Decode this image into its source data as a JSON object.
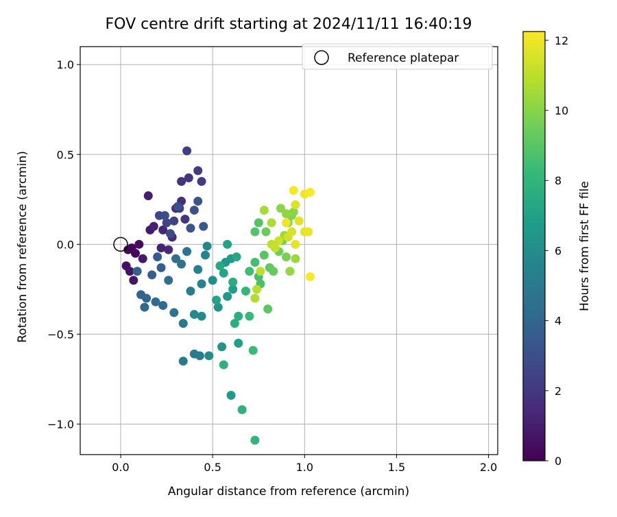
{
  "chart_data": {
    "type": "scatter",
    "title": "FOV centre drift starting at 2024/11/11 16:40:19",
    "xlabel": "Angular distance from reference (arcmin)",
    "ylabel": "Rotation from reference (arcmin)",
    "xlim": [
      -0.22,
      2.05
    ],
    "ylim": [
      -1.17,
      1.1
    ],
    "xticks": [
      0.0,
      0.5,
      1.0,
      1.5,
      2.0
    ],
    "xtick_labels": [
      "0.0",
      "0.5",
      "1.0",
      "1.5",
      "2.0"
    ],
    "yticks": [
      -1.0,
      -0.5,
      0.0,
      0.5,
      1.0
    ],
    "ytick_labels": [
      "−1.0",
      "−0.5",
      "0.0",
      "0.5",
      "1.0"
    ],
    "grid": true,
    "legend": {
      "placement": "top-right",
      "entries": [
        "Reference platepar"
      ]
    },
    "reference_point": {
      "x": 0.0,
      "y": 0.0,
      "marker": "open-circle"
    },
    "colorbar": {
      "label": "Hours from first FF file",
      "range": [
        0,
        12.25
      ],
      "ticks": [
        0,
        2,
        4,
        6,
        8,
        10,
        12
      ],
      "tick_labels": [
        "0",
        "2",
        "4",
        "6",
        "8",
        "10",
        "12"
      ],
      "colormap": [
        "#440154",
        "#482878",
        "#3e4989",
        "#31688e",
        "#26828e",
        "#1f9e89",
        "#35b779",
        "#6ece58",
        "#b5de2b",
        "#fde725"
      ]
    },
    "series": [
      {
        "points": [
          {
            "x": 0.04,
            "y": -0.03,
            "h": 0.1
          },
          {
            "x": 0.06,
            "y": -0.02,
            "h": 0.2
          },
          {
            "x": 0.08,
            "y": -0.05,
            "h": 0.3
          },
          {
            "x": 0.1,
            "y": 0.0,
            "h": 0.4
          },
          {
            "x": 0.03,
            "y": -0.12,
            "h": 0.5
          },
          {
            "x": 0.05,
            "y": -0.15,
            "h": 0.6
          },
          {
            "x": 0.07,
            "y": -0.2,
            "h": 0.7
          },
          {
            "x": 0.12,
            "y": -0.08,
            "h": 0.8
          },
          {
            "x": 0.16,
            "y": 0.08,
            "h": 0.9
          },
          {
            "x": 0.15,
            "y": 0.27,
            "h": 1.0
          },
          {
            "x": 0.18,
            "y": 0.1,
            "h": 1.1
          },
          {
            "x": 0.22,
            "y": -0.02,
            "h": 1.2
          },
          {
            "x": 0.23,
            "y": 0.08,
            "h": 1.3
          },
          {
            "x": 0.26,
            "y": -0.03,
            "h": 1.4
          },
          {
            "x": 0.28,
            "y": 0.04,
            "h": 1.5
          },
          {
            "x": 0.3,
            "y": 0.2,
            "h": 1.6
          },
          {
            "x": 0.33,
            "y": 0.24,
            "h": 1.7
          },
          {
            "x": 0.33,
            "y": 0.35,
            "h": 1.8
          },
          {
            "x": 0.37,
            "y": 0.37,
            "h": 1.9
          },
          {
            "x": 0.35,
            "y": 0.14,
            "h": 2.0
          },
          {
            "x": 0.42,
            "y": 0.41,
            "h": 2.1
          },
          {
            "x": 0.44,
            "y": 0.35,
            "h": 2.2
          },
          {
            "x": 0.36,
            "y": 0.52,
            "h": 2.3
          },
          {
            "x": 0.32,
            "y": 0.2,
            "h": 2.4
          },
          {
            "x": 0.29,
            "y": 0.13,
            "h": 2.5
          },
          {
            "x": 0.25,
            "y": 0.12,
            "h": 2.6
          },
          {
            "x": 0.21,
            "y": 0.16,
            "h": 2.7
          },
          {
            "x": 0.27,
            "y": 0.06,
            "h": 2.8
          },
          {
            "x": 0.24,
            "y": 0.16,
            "h": 2.9
          },
          {
            "x": 0.31,
            "y": 0.21,
            "h": 3.0
          },
          {
            "x": 0.4,
            "y": 0.19,
            "h": 3.1
          },
          {
            "x": 0.42,
            "y": 0.24,
            "h": 3.2
          },
          {
            "x": 0.38,
            "y": 0.09,
            "h": 3.3
          },
          {
            "x": 0.45,
            "y": 0.1,
            "h": 3.4
          },
          {
            "x": 0.2,
            "y": -0.07,
            "h": 3.5
          },
          {
            "x": 0.22,
            "y": -0.13,
            "h": 3.6
          },
          {
            "x": 0.17,
            "y": -0.17,
            "h": 3.7
          },
          {
            "x": 0.09,
            "y": -0.15,
            "h": 3.8
          },
          {
            "x": 0.11,
            "y": -0.28,
            "h": 3.9
          },
          {
            "x": 0.14,
            "y": -0.3,
            "h": 4.0
          },
          {
            "x": 0.13,
            "y": -0.35,
            "h": 4.1
          },
          {
            "x": 0.23,
            "y": -0.34,
            "h": 4.2
          },
          {
            "x": 0.19,
            "y": -0.32,
            "h": 4.3
          },
          {
            "x": 0.26,
            "y": -0.2,
            "h": 4.4
          },
          {
            "x": 0.3,
            "y": -0.08,
            "h": 4.5
          },
          {
            "x": 0.33,
            "y": -0.11,
            "h": 4.6
          },
          {
            "x": 0.36,
            "y": -0.04,
            "h": 4.7
          },
          {
            "x": 0.29,
            "y": -0.38,
            "h": 4.8
          },
          {
            "x": 0.34,
            "y": -0.44,
            "h": 4.9
          },
          {
            "x": 0.34,
            "y": -0.65,
            "h": 5.0
          },
          {
            "x": 0.4,
            "y": -0.61,
            "h": 5.1
          },
          {
            "x": 0.43,
            "y": -0.62,
            "h": 5.2
          },
          {
            "x": 0.38,
            "y": -0.26,
            "h": 5.3
          },
          {
            "x": 0.42,
            "y": -0.14,
            "h": 5.4
          },
          {
            "x": 0.44,
            "y": -0.22,
            "h": 5.5
          },
          {
            "x": 0.46,
            "y": -0.06,
            "h": 5.6
          },
          {
            "x": 0.47,
            "y": -0.01,
            "h": 5.7
          },
          {
            "x": 0.4,
            "y": -0.39,
            "h": 5.8
          },
          {
            "x": 0.44,
            "y": -0.4,
            "h": 5.9
          },
          {
            "x": 0.48,
            "y": -0.62,
            "h": 6.0
          },
          {
            "x": 0.5,
            "y": -0.2,
            "h": 6.1
          },
          {
            "x": 0.53,
            "y": -0.35,
            "h": 6.2
          },
          {
            "x": 0.55,
            "y": -0.57,
            "h": 6.3
          },
          {
            "x": 0.57,
            "y": -0.1,
            "h": 6.4
          },
          {
            "x": 0.58,
            "y": -0.29,
            "h": 6.5
          },
          {
            "x": 0.6,
            "y": -0.84,
            "h": 6.6
          },
          {
            "x": 0.6,
            "y": -0.08,
            "h": 6.7
          },
          {
            "x": 0.61,
            "y": -0.25,
            "h": 6.8
          },
          {
            "x": 0.64,
            "y": -0.55,
            "h": 6.9
          },
          {
            "x": 0.58,
            "y": 0.0,
            "h": 7.0
          },
          {
            "x": 0.52,
            "y": -0.31,
            "h": 7.1
          },
          {
            "x": 0.56,
            "y": -0.16,
            "h": 7.2
          },
          {
            "x": 0.63,
            "y": -0.07,
            "h": 7.3
          },
          {
            "x": 0.54,
            "y": -0.12,
            "h": 7.4
          },
          {
            "x": 0.61,
            "y": -0.21,
            "h": 7.5
          },
          {
            "x": 0.62,
            "y": -0.44,
            "h": 7.6
          },
          {
            "x": 0.64,
            "y": -0.4,
            "h": 7.7
          },
          {
            "x": 0.56,
            "y": -0.67,
            "h": 7.8
          },
          {
            "x": 0.66,
            "y": -0.92,
            "h": 7.9
          },
          {
            "x": 0.73,
            "y": -1.09,
            "h": 8.0
          },
          {
            "x": 0.68,
            "y": -0.26,
            "h": 8.1
          },
          {
            "x": 0.7,
            "y": -0.4,
            "h": 8.2
          },
          {
            "x": 0.72,
            "y": -0.59,
            "h": 8.3
          },
          {
            "x": 0.7,
            "y": -0.15,
            "h": 8.4
          },
          {
            "x": 0.73,
            "y": -0.1,
            "h": 8.5
          },
          {
            "x": 0.75,
            "y": -0.18,
            "h": 8.6
          },
          {
            "x": 0.76,
            "y": -0.22,
            "h": 8.7
          },
          {
            "x": 0.73,
            "y": 0.07,
            "h": 8.8
          },
          {
            "x": 0.75,
            "y": 0.12,
            "h": 8.9
          },
          {
            "x": 0.78,
            "y": -0.06,
            "h": 9.0
          },
          {
            "x": 0.8,
            "y": -0.36,
            "h": 9.1
          },
          {
            "x": 0.81,
            "y": -0.13,
            "h": 9.2
          },
          {
            "x": 0.83,
            "y": -0.15,
            "h": 9.3
          },
          {
            "x": 0.79,
            "y": 0.07,
            "h": 9.4
          },
          {
            "x": 0.86,
            "y": -0.04,
            "h": 9.5
          },
          {
            "x": 0.88,
            "y": 0.02,
            "h": 9.6
          },
          {
            "x": 0.9,
            "y": -0.07,
            "h": 9.7
          },
          {
            "x": 0.91,
            "y": 0.12,
            "h": 9.8
          },
          {
            "x": 0.93,
            "y": 0.16,
            "h": 9.9
          },
          {
            "x": 0.94,
            "y": 0.18,
            "h": 10.0
          },
          {
            "x": 0.87,
            "y": 0.2,
            "h": 10.1
          },
          {
            "x": 0.9,
            "y": 0.17,
            "h": 10.2
          },
          {
            "x": 0.92,
            "y": -0.15,
            "h": 10.3
          },
          {
            "x": 0.95,
            "y": -0.08,
            "h": 10.4
          },
          {
            "x": 0.89,
            "y": 0.05,
            "h": 10.5
          },
          {
            "x": 0.78,
            "y": 0.19,
            "h": 10.6
          },
          {
            "x": 0.82,
            "y": 0.12,
            "h": 10.7
          },
          {
            "x": 0.73,
            "y": -0.3,
            "h": 10.8
          },
          {
            "x": 0.74,
            "y": -0.25,
            "h": 10.9
          },
          {
            "x": 0.76,
            "y": -0.15,
            "h": 11.0
          },
          {
            "x": 0.82,
            "y": 0.0,
            "h": 11.1
          },
          {
            "x": 0.84,
            "y": -0.02,
            "h": 11.2
          },
          {
            "x": 0.86,
            "y": 0.02,
            "h": 11.3
          },
          {
            "x": 0.91,
            "y": 0.04,
            "h": 11.4
          },
          {
            "x": 0.93,
            "y": 0.07,
            "h": 11.5
          },
          {
            "x": 0.95,
            "y": 0.22,
            "h": 11.6
          },
          {
            "x": 0.97,
            "y": 0.13,
            "h": 11.7
          },
          {
            "x": 1.0,
            "y": 0.07,
            "h": 11.8
          },
          {
            "x": 1.02,
            "y": 0.07,
            "h": 11.9
          },
          {
            "x": 1.0,
            "y": 0.28,
            "h": 12.0
          },
          {
            "x": 0.94,
            "y": 0.3,
            "h": 12.1
          },
          {
            "x": 1.03,
            "y": 0.29,
            "h": 12.2
          },
          {
            "x": 1.03,
            "y": -0.18,
            "h": 12.2
          },
          {
            "x": 0.9,
            "y": 0.12,
            "h": 12.0
          },
          {
            "x": 0.95,
            "y": 0.0,
            "h": 11.8
          }
        ]
      }
    ]
  }
}
